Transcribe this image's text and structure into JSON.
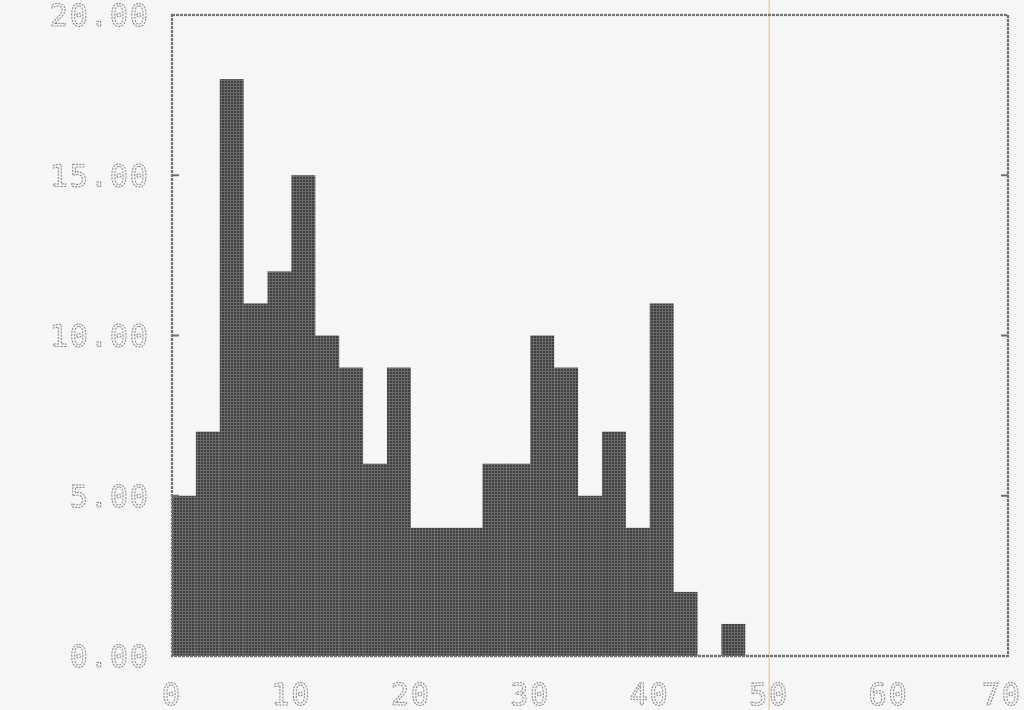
{
  "chart_data": {
    "type": "bar",
    "title": "",
    "xlabel": "",
    "ylabel": "",
    "x_ticks": [
      "0",
      "10",
      "20",
      "30",
      "40",
      "50",
      "60",
      "70"
    ],
    "y_ticks": [
      "0.00",
      "5.00",
      "10.00",
      "15.00",
      "20.00"
    ],
    "xlim": [
      0,
      70
    ],
    "ylim": [
      0,
      20
    ],
    "bin_width": 2,
    "bins": [
      {
        "x": 2,
        "value": 5
      },
      {
        "x": 4,
        "value": 7
      },
      {
        "x": 6,
        "value": 18
      },
      {
        "x": 8,
        "value": 11
      },
      {
        "x": 10,
        "value": 12
      },
      {
        "x": 12,
        "value": 15
      },
      {
        "x": 14,
        "value": 10
      },
      {
        "x": 16,
        "value": 9
      },
      {
        "x": 18,
        "value": 6
      },
      {
        "x": 20,
        "value": 9
      },
      {
        "x": 22,
        "value": 4
      },
      {
        "x": 24,
        "value": 4
      },
      {
        "x": 26,
        "value": 4
      },
      {
        "x": 28,
        "value": 6
      },
      {
        "x": 30,
        "value": 6
      },
      {
        "x": 32,
        "value": 10
      },
      {
        "x": 34,
        "value": 9
      },
      {
        "x": 36,
        "value": 5
      },
      {
        "x": 38,
        "value": 7
      },
      {
        "x": 40,
        "value": 4
      },
      {
        "x": 42,
        "value": 11
      },
      {
        "x": 44,
        "value": 2
      },
      {
        "x": 48,
        "value": 1
      }
    ],
    "grid": false,
    "reference_line_x": 50,
    "bar_color": "#4a4a4a"
  }
}
